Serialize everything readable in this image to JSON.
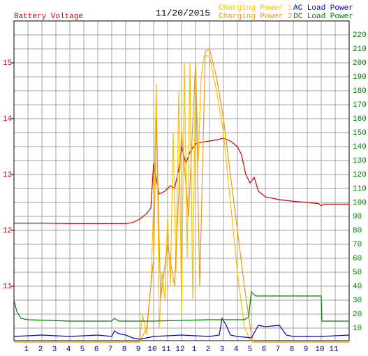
{
  "chart_data": {
    "type": "line",
    "title": "11/20/2015",
    "ylabel": "Battery Voltage",
    "xlim": [
      0,
      24
    ],
    "xticks": [
      1,
      2,
      3,
      4,
      5,
      6,
      7,
      8,
      9,
      10,
      11,
      12,
      {
        "value": 13,
        "label": "1"
      },
      {
        "value": 14,
        "label": "2"
      },
      {
        "value": 15,
        "label": "3"
      },
      {
        "value": 16,
        "label": "4"
      },
      {
        "value": 17,
        "label": "5"
      },
      {
        "value": 18,
        "label": "6"
      },
      {
        "value": 19,
        "label": "7"
      },
      {
        "value": 20,
        "label": "8"
      },
      {
        "value": 21,
        "label": "9"
      },
      {
        "value": 22,
        "label": "10"
      },
      {
        "value": 23,
        "label": "11"
      }
    ],
    "ylim": [
      10.025,
      15.75
    ],
    "yticks": [
      11,
      12,
      13,
      14,
      15
    ],
    "y2lim": [
      1,
      230
    ],
    "y2ticks": [
      10,
      20,
      30,
      40,
      50,
      60,
      70,
      80,
      90,
      100,
      110,
      120,
      130,
      140,
      150,
      160,
      170,
      180,
      190,
      200,
      210,
      220
    ],
    "grid": true,
    "series": [
      {
        "name": "Battery Voltage",
        "color": "#cc0000",
        "axis": "y",
        "x": [
          0,
          2,
          4,
          6,
          8,
          8.5,
          9,
          9.5,
          9.8,
          10,
          10.2,
          10.4,
          10.8,
          11.2,
          11.5,
          11.8,
          12,
          12.3,
          12.6,
          13,
          13.5,
          14,
          14.5,
          15,
          15.5,
          16,
          16.3,
          16.6,
          16.9,
          17.2,
          17.5,
          18,
          19,
          20,
          21,
          21.8,
          22,
          22.2,
          23,
          24
        ],
        "values": [
          12.13,
          12.13,
          12.12,
          12.12,
          12.12,
          12.14,
          12.2,
          12.3,
          12.4,
          13.2,
          12.9,
          12.65,
          12.7,
          12.8,
          12.75,
          13.1,
          13.5,
          13.2,
          13.4,
          13.55,
          13.58,
          13.6,
          13.62,
          13.65,
          13.6,
          13.5,
          13.35,
          13.0,
          12.85,
          12.95,
          12.7,
          12.6,
          12.55,
          12.52,
          12.5,
          12.48,
          12.44,
          12.47,
          12.47,
          12.47
        ]
      },
      {
        "name": "Charging Power 1",
        "color": "#ffc000",
        "axis": "y2",
        "x": [
          0,
          9,
          9.2,
          9.5,
          9.8,
          10,
          10.2,
          10.4,
          10.6,
          10.8,
          11,
          11.2,
          11.4,
          11.6,
          11.8,
          12,
          12.2,
          12.4,
          12.6,
          12.8,
          13,
          13.2,
          13.4,
          13.6,
          14,
          14.5,
          15,
          15.5,
          16,
          16.5,
          17,
          24
        ],
        "values": [
          0,
          0,
          20,
          5,
          40,
          100,
          185,
          10,
          50,
          30,
          90,
          40,
          150,
          50,
          180,
          20,
          200,
          60,
          200,
          30,
          200,
          130,
          190,
          205,
          205,
          180,
          150,
          100,
          50,
          10,
          0,
          0
        ]
      },
      {
        "name": "Charging Power 2",
        "color": "#e89a20",
        "axis": "y2",
        "x": [
          0,
          9,
          9.5,
          10,
          10.2,
          10.5,
          11,
          11.5,
          12,
          12.5,
          13,
          13.3,
          13.7,
          14,
          14.5,
          15,
          15.5,
          16,
          16.5,
          17,
          17.2,
          24
        ],
        "values": [
          0,
          0,
          10,
          60,
          160,
          30,
          70,
          40,
          150,
          90,
          200,
          40,
          208,
          210,
          190,
          160,
          120,
          80,
          40,
          5,
          0,
          0
        ]
      },
      {
        "name": "AC Load Power",
        "color": "#0000cc",
        "axis": "y2",
        "x": [
          0,
          2,
          4,
          6,
          7,
          7.2,
          7.5,
          8,
          8.5,
          9,
          10,
          12,
          14,
          14.7,
          14.9,
          15.2,
          15.5,
          16,
          17,
          17.5,
          18,
          19,
          19.5,
          20,
          22,
          24
        ],
        "values": [
          4,
          5,
          4,
          5,
          4,
          8,
          6,
          5,
          3,
          2,
          4,
          5,
          4,
          5,
          17,
          12,
          5,
          4,
          3,
          12,
          11,
          12,
          5,
          4,
          4,
          5
        ]
      },
      {
        "name": "DC Load Power",
        "color": "#008000",
        "axis": "y2",
        "x": [
          0,
          0.2,
          0.5,
          1,
          4,
          7,
          7.2,
          7.5,
          10,
          14,
          16.5,
          16.8,
          17,
          17.3,
          18,
          20,
          22,
          22.05,
          24
        ],
        "values": [
          30,
          22,
          17,
          16,
          15,
          15,
          17,
          15,
          15,
          16,
          16,
          18,
          36,
          33,
          33,
          33,
          33,
          15,
          15
        ]
      }
    ]
  }
}
